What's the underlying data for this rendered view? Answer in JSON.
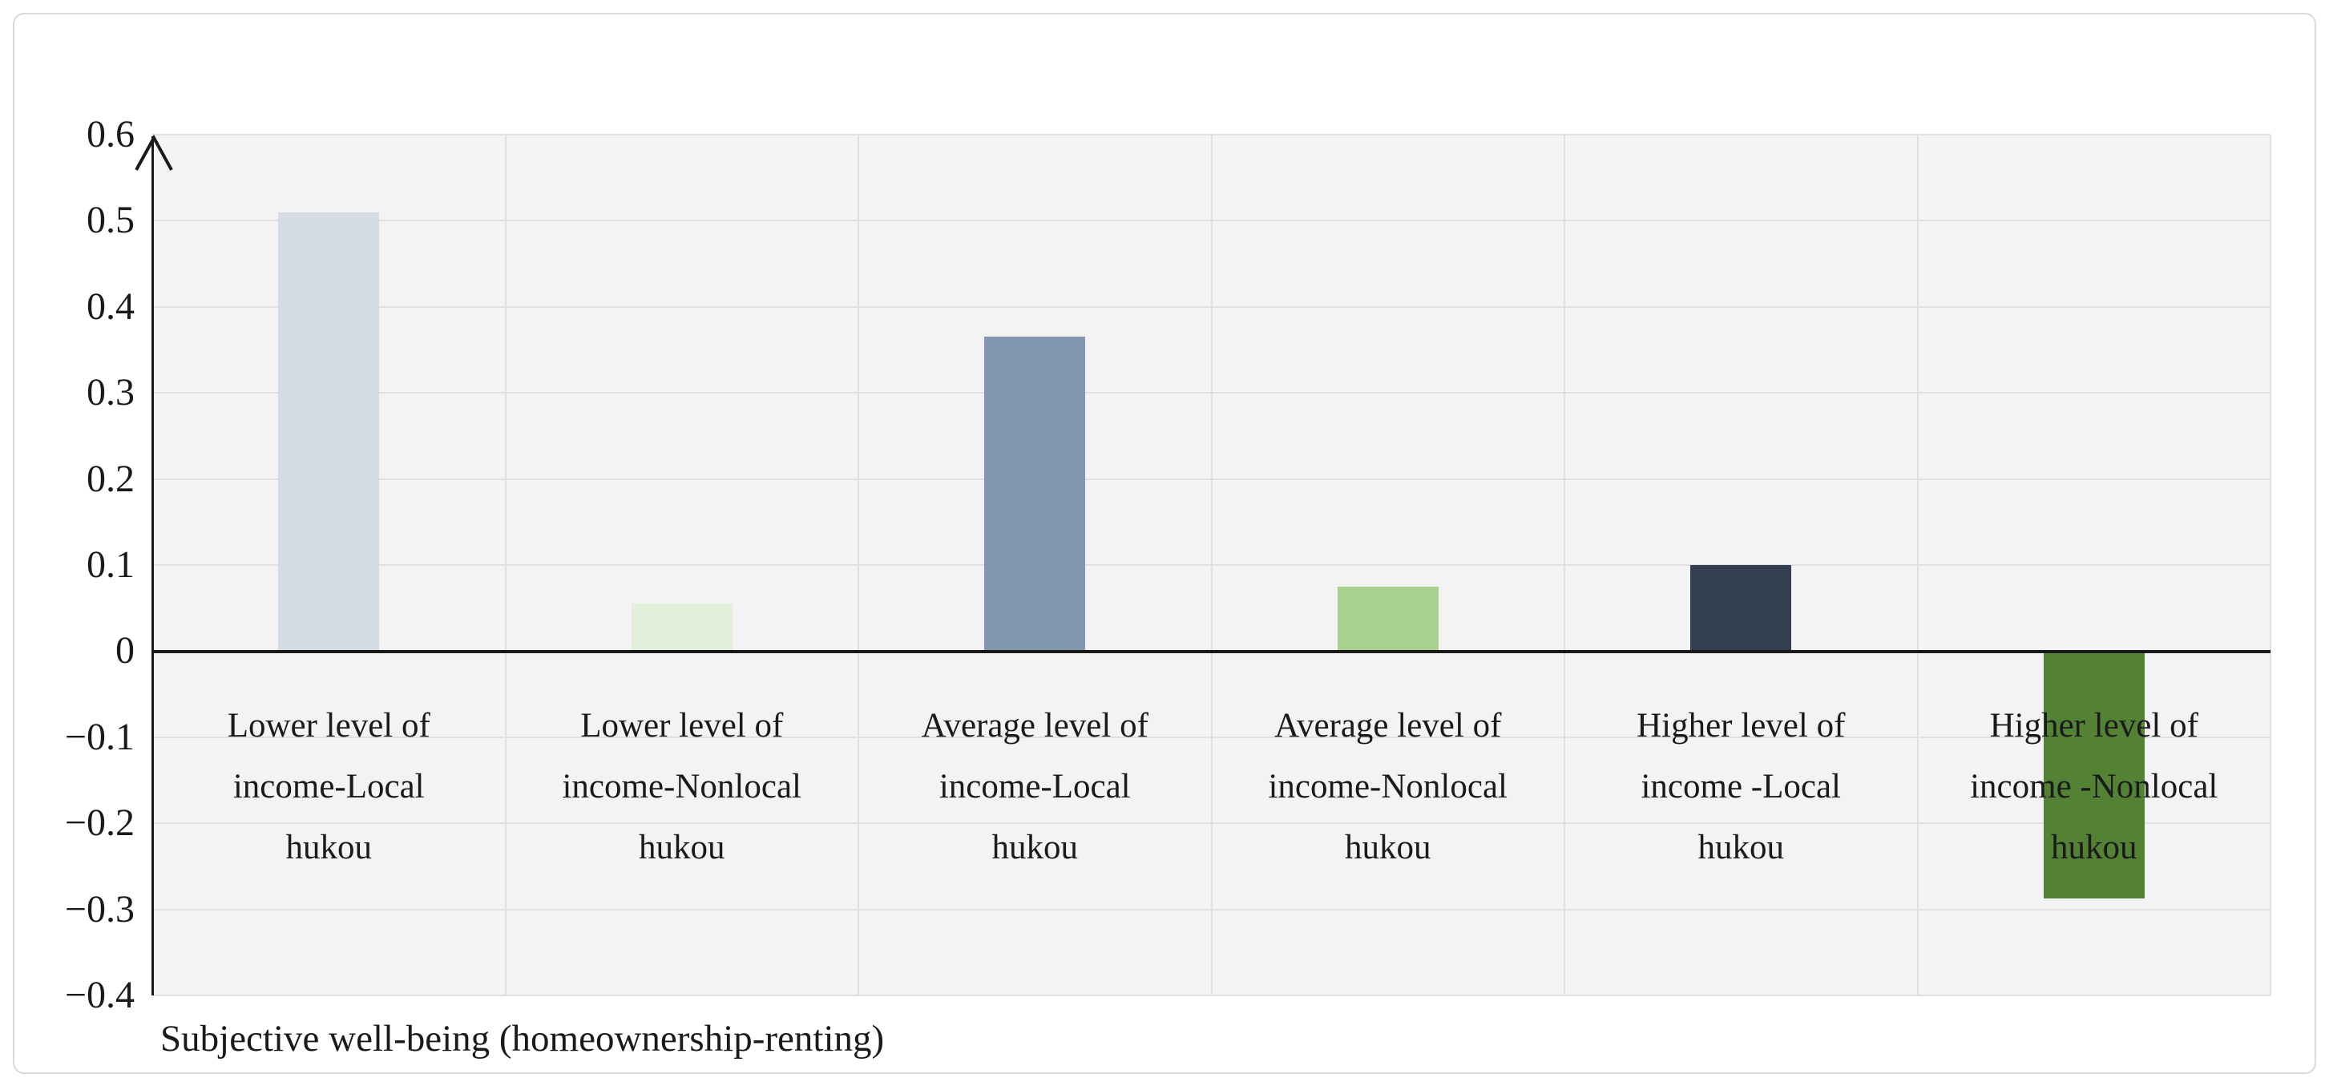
{
  "chart_data": {
    "type": "bar",
    "title": "",
    "xlabel": "Subjective well-being (homeownership-renting)",
    "ylabel": "",
    "ylim": [
      -0.4,
      0.6
    ],
    "ytick_step": 0.1,
    "ytick_labels": [
      "0.6",
      "0.5",
      "0.4",
      "0.3",
      "0.2",
      "0.1",
      "0",
      "−0.1",
      "−0.2",
      "−0.3",
      "−0.4"
    ],
    "grid": true,
    "legend": "none",
    "categories": [
      "Lower level of income-Local hukou",
      "Lower level of income-Nonlocal hukou",
      "Average level of income-Local hukou",
      "Average level of income-Nonlocal hukou",
      "Higher level of income -Local hukou",
      "Higher level of income -Nonlocal hukou"
    ],
    "categories_lines": [
      {
        "line1": "Lower level of",
        "line2": "income-Local",
        "line3": "hukou"
      },
      {
        "line1": "Lower level of",
        "line2": "income-Nonlocal",
        "line3": "hukou"
      },
      {
        "line1": "Average level of",
        "line2": "income-Local",
        "line3": "hukou"
      },
      {
        "line1": "Average level of",
        "line2": "income-Nonlocal",
        "line3": "hukou"
      },
      {
        "line1": "Higher level of",
        "line2": "income -Local",
        "line3": "hukou"
      },
      {
        "line1": "Higher level of",
        "line2": "income -Nonlocal",
        "line3": "hukou"
      }
    ],
    "values": [
      0.51,
      0.055,
      0.365,
      0.075,
      0.1,
      -0.285
    ],
    "bar_colors": [
      "#D6DCE5",
      "#E2EFDA",
      "#8497B0",
      "#A9D18E",
      "#333F50",
      "#548235"
    ],
    "colors": {
      "plot_background": "#F3F3F3",
      "gridline": "#E0E0E0",
      "axis_line": "#1A1A1A",
      "text": "#1A1A1A",
      "figure_border": "#D9D9D9"
    }
  }
}
